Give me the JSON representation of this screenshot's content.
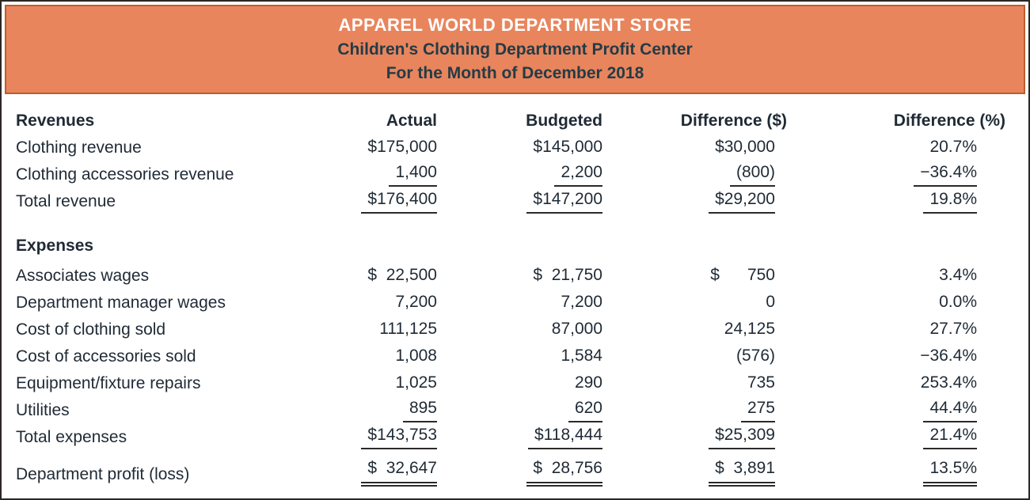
{
  "banner": {
    "store": "APPAREL WORLD DEPARTMENT STORE",
    "department": "Children's Clothing Department Profit Center",
    "period": "For the Month of December 2018"
  },
  "columns": {
    "revenues": "Revenues",
    "actual": "Actual",
    "budgeted": "Budgeted",
    "diff_dollar": "Difference ($)",
    "diff_percent": "Difference (%)"
  },
  "revenues": {
    "rows": [
      {
        "label": "Clothing revenue",
        "actual": "$175,000",
        "budgeted": "$145,000",
        "diff": "$30,000",
        "pct": "20.7%"
      },
      {
        "label": "Clothing accessories revenue",
        "actual": "1,400",
        "budgeted": "2,200",
        "diff": "(800)",
        "pct": "−36.4%"
      },
      {
        "label": "Total revenue",
        "actual": "$176,400",
        "budgeted": "$147,200",
        "diff": "$29,200",
        "pct": "19.8%"
      }
    ]
  },
  "expenses": {
    "title": "Expenses",
    "rows": [
      {
        "label": "Associates wages",
        "actual": "$  22,500",
        "budgeted": "$  21,750",
        "diff": "$      750",
        "pct": "3.4%"
      },
      {
        "label": "Department manager wages",
        "actual": "7,200",
        "budgeted": "7,200",
        "diff": "0",
        "pct": "0.0%"
      },
      {
        "label": "Cost of clothing sold",
        "actual": "111,125",
        "budgeted": "87,000",
        "diff": "24,125",
        "pct": "27.7%"
      },
      {
        "label": "Cost of accessories sold",
        "actual": "1,008",
        "budgeted": "1,584",
        "diff": "(576)",
        "pct": "−36.4%"
      },
      {
        "label": "Equipment/fixture repairs",
        "actual": "1,025",
        "budgeted": "290",
        "diff": "735",
        "pct": "253.4%"
      },
      {
        "label": "Utilities",
        "actual": "895",
        "budgeted": "620",
        "diff": "275",
        "pct": "44.4%"
      },
      {
        "label": "Total expenses",
        "actual": "$143,753",
        "budgeted": "$118,444",
        "diff": "$25,309",
        "pct": "21.4%"
      }
    ]
  },
  "profit": {
    "label": "Department profit (loss)",
    "actual": "$  32,647",
    "budgeted": "$  28,756",
    "diff": "$  3,891",
    "pct": "13.5%"
  }
}
